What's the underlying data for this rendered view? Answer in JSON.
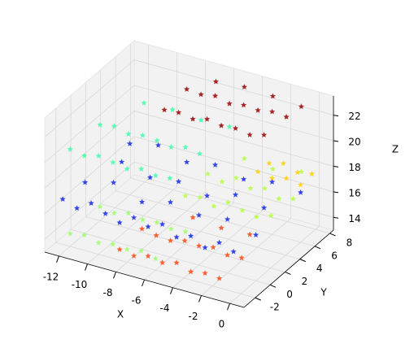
{
  "chart_data": {
    "type": "scatter3d",
    "xlabel": "X",
    "ylabel": "Y",
    "zlabel": "Z",
    "xlim": [
      -13,
      1
    ],
    "ylim": [
      -3.5,
      8.5
    ],
    "zlim": [
      13,
      23.5
    ],
    "xticks": [
      -12,
      -10,
      -8,
      -6,
      -4,
      -2,
      0
    ],
    "yticks": [
      -2,
      0,
      2,
      4,
      6,
      8
    ],
    "zticks": [
      14,
      16,
      18,
      20,
      22
    ],
    "grid": true,
    "series": [
      {
        "color": "#9a0000",
        "x": [
          -8,
          -7,
          -6,
          -5,
          -4,
          -3,
          -2,
          -1,
          -8,
          -7,
          -6,
          -5,
          -4,
          -3,
          -2,
          -1,
          -7,
          -5,
          -3,
          -1
        ],
        "y": [
          3,
          3,
          3,
          3,
          3,
          3,
          3,
          3,
          6,
          6,
          6,
          6,
          6,
          6,
          6,
          6,
          8,
          8,
          8,
          8
        ],
        "z": [
          22.4,
          22.5,
          22.3,
          22.6,
          22.4,
          22.5,
          22.3,
          22.6,
          22.5,
          22.4,
          22.6,
          22.3,
          22.5,
          22.4,
          22.6,
          22.5,
          22.4,
          22.6,
          22.5,
          22.3
        ]
      },
      {
        "color": "#3cffa8",
        "x": [
          -12,
          -11,
          -10,
          -9,
          -8,
          -7,
          -6,
          -5,
          -12,
          -11,
          -10,
          -9,
          -8,
          -7,
          -6,
          -5,
          -11,
          -9,
          -7,
          -5
        ],
        "y": [
          -2,
          -2,
          -2,
          -2,
          -2,
          -2,
          -2,
          -2,
          2,
          2,
          2,
          2,
          2,
          2,
          2,
          2,
          6,
          6,
          6,
          6
        ],
        "z": [
          20.6,
          20.4,
          20.7,
          20.5,
          20.3,
          20.6,
          20.4,
          20.5,
          20.5,
          20.7,
          20.4,
          20.6,
          20.5,
          20.3,
          20.6,
          20.4,
          20.5,
          20.6,
          20.4,
          20.5
        ]
      },
      {
        "color": "#1428e6",
        "x": [
          -12,
          -11,
          -10,
          -9,
          -8,
          -7,
          -6,
          -5,
          -4,
          -3,
          -2,
          -1,
          0,
          -12,
          -10,
          -8,
          -6,
          -4,
          -2,
          0,
          -11,
          -9,
          -7,
          -5,
          -3,
          -1,
          -12,
          -10,
          -8,
          -6,
          -4,
          -2,
          0
        ],
        "y": [
          -3,
          -3,
          -3,
          -3,
          -3,
          -3,
          -3,
          -3,
          -3,
          -3,
          -3,
          -3,
          -3,
          0,
          0,
          0,
          0,
          0,
          0,
          0,
          3,
          3,
          3,
          3,
          3,
          3,
          6,
          6,
          6,
          6,
          6,
          6,
          6
        ],
        "z": [
          17.2,
          16.8,
          17.5,
          17.0,
          16.6,
          17.3,
          16.9,
          17.4,
          16.7,
          17.1,
          16.5,
          17.2,
          16.8,
          17.0,
          17.6,
          16.7,
          17.3,
          16.9,
          17.2,
          16.6,
          17.4,
          16.8,
          17.1,
          16.6,
          17.3,
          16.9,
          17.0,
          17.5,
          16.8,
          17.2,
          16.7,
          17.1,
          16.9
        ]
      },
      {
        "color": "#b4ff3c",
        "x": [
          -6,
          -5,
          -4,
          -3,
          -2,
          -1,
          0,
          -6,
          -5,
          -4,
          -3,
          -2,
          -1,
          0,
          -5,
          -3,
          -1
        ],
        "y": [
          2,
          2,
          2,
          2,
          2,
          2,
          2,
          5,
          5,
          5,
          5,
          5,
          5,
          5,
          8,
          8,
          8
        ],
        "z": [
          16.8,
          17.0,
          16.6,
          17.2,
          16.9,
          16.7,
          17.1,
          17.0,
          16.7,
          17.3,
          16.8,
          17.1,
          16.6,
          16.9,
          17.0,
          16.8,
          17.2
        ]
      },
      {
        "color": "#ffd000",
        "x": [
          -3,
          -2,
          -1,
          0,
          -3,
          -2,
          -1,
          0
        ],
        "y": [
          6,
          6,
          6,
          6,
          7.5,
          7.5,
          7.5,
          7.5
        ],
        "z": [
          17.6,
          17.4,
          17.7,
          17.5,
          17.5,
          17.8,
          17.4,
          17.6
        ]
      },
      {
        "color": "#ff4612",
        "x": [
          -8,
          -7,
          -6,
          -5,
          -4,
          -3,
          -2,
          -1,
          -8,
          -7,
          -6,
          -5,
          -4,
          -3,
          -2,
          -1,
          -6,
          -4,
          -2
        ],
        "y": [
          -3,
          -3,
          -3,
          -3,
          -3,
          -3,
          -3,
          -3,
          0,
          0,
          0,
          0,
          0,
          0,
          0,
          0,
          3,
          3,
          3
        ],
        "z": [
          14.5,
          14.3,
          14.6,
          14.4,
          14.7,
          14.3,
          14.5,
          14.4,
          14.6,
          14.4,
          14.3,
          14.6,
          14.5,
          14.7,
          14.4,
          14.5,
          14.6,
          14.4,
          14.5
        ]
      },
      {
        "color": "#9cff6a",
        "x": [
          -12,
          -11,
          -10,
          -9,
          -8,
          -7,
          -6,
          -12,
          -11,
          -10,
          -9,
          -8,
          -7,
          -6
        ],
        "y": [
          -2,
          -2,
          -2,
          -2,
          -2,
          -2,
          -2,
          2,
          2,
          2,
          2,
          2,
          2,
          2
        ],
        "z": [
          14.0,
          14.2,
          13.9,
          14.1,
          14.0,
          14.2,
          13.9,
          14.1,
          13.9,
          14.2,
          14.0,
          14.1,
          13.9,
          14.0
        ]
      }
    ]
  }
}
